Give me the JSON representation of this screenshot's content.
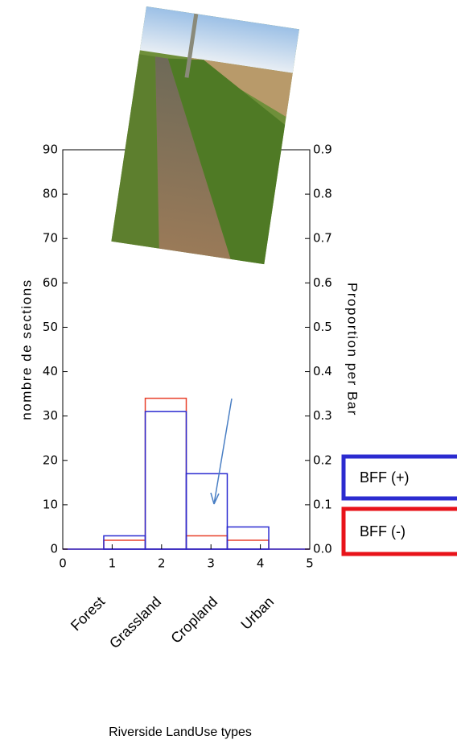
{
  "chart_data": {
    "type": "histogram",
    "xlabel": "Riverside LandUse types",
    "ylabel": "nombre de sections",
    "y2label": "Proportion per Bar",
    "categories": [
      "Forest",
      "Grassland",
      "Cropland",
      "Urban"
    ],
    "bins": [
      0.83,
      1.67,
      2.5,
      3.33,
      4.17
    ],
    "series": [
      {
        "name": "BFF (+)",
        "color": "#2b2bd0",
        "values": [
          3,
          31,
          17,
          5
        ]
      },
      {
        "name": "BFF (-)",
        "color": "#e8402a",
        "values": [
          2,
          34,
          3,
          2
        ]
      }
    ],
    "xlim": [
      0,
      5
    ],
    "xticks": [
      0,
      1,
      2,
      3,
      4,
      5
    ],
    "ylim": [
      0,
      90
    ],
    "yticks": [
      0,
      10,
      20,
      30,
      40,
      50,
      60,
      70,
      80,
      90
    ],
    "y2lim": [
      0,
      0.9
    ],
    "y2ticks": [
      {
        "value": 0,
        "label": "0.0"
      },
      0.1,
      0.2,
      0.3,
      0.4,
      0.5,
      0.6,
      0.7,
      0.8,
      0.9
    ]
  }
}
